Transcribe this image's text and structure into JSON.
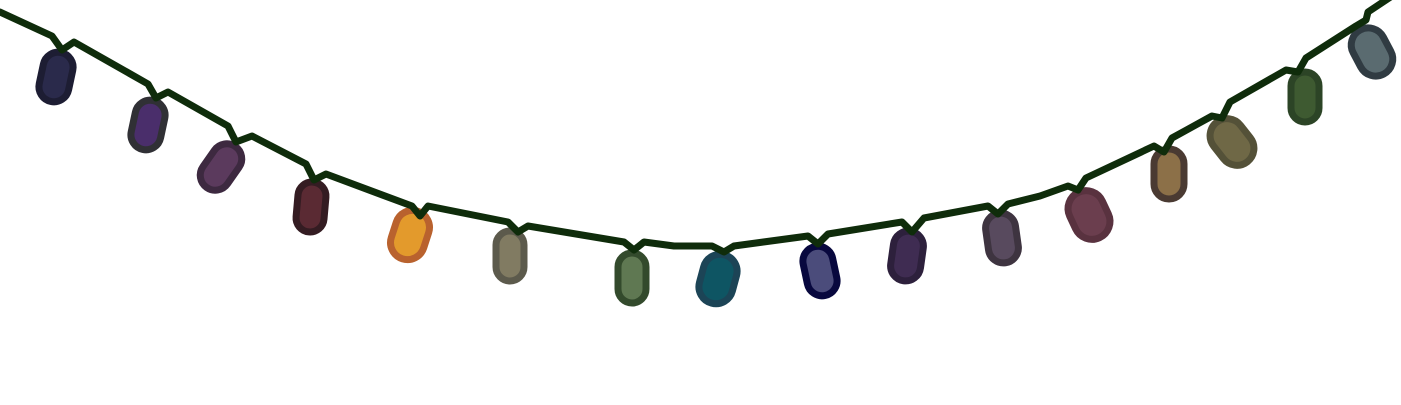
{
  "wire": {
    "color": "#0f2c0b"
  },
  "bulbs": [
    {
      "name": "bulb-1",
      "fill": "#2a2a4b",
      "outline": "#1d1d33"
    },
    {
      "name": "bulb-2",
      "fill": "#4a2e6b",
      "outline": "#303035"
    },
    {
      "name": "bulb-3",
      "fill": "#5b3a5d",
      "outline": "#3d2940"
    },
    {
      "name": "bulb-4",
      "fill": "#5a2a33",
      "outline": "#341c22"
    },
    {
      "name": "bulb-5",
      "fill": "#e39a2c",
      "outline": "#b9622e"
    },
    {
      "name": "bulb-6",
      "fill": "#817b62",
      "outline": "#5c5a4c"
    },
    {
      "name": "bulb-7",
      "fill": "#5f7852",
      "outline": "#334a2c"
    },
    {
      "name": "bulb-8",
      "fill": "#0e5563",
      "outline": "#1c4456"
    },
    {
      "name": "bulb-9",
      "fill": "#4b4c7b",
      "outline": "#08083e"
    },
    {
      "name": "bulb-10",
      "fill": "#3f2c52",
      "outline": "#2d203c"
    },
    {
      "name": "bulb-11",
      "fill": "#584a5e",
      "outline": "#3e3440"
    },
    {
      "name": "bulb-12",
      "fill": "#6b3e4e",
      "outline": "#59323f"
    },
    {
      "name": "bulb-13",
      "fill": "#8c7048",
      "outline": "#4a3a32"
    },
    {
      "name": "bulb-14",
      "fill": "#6f6846",
      "outline": "#545138"
    },
    {
      "name": "bulb-15",
      "fill": "#3e5a31",
      "outline": "#2c4426"
    },
    {
      "name": "bulb-16",
      "fill": "#5a6b70",
      "outline": "#303b42"
    }
  ]
}
